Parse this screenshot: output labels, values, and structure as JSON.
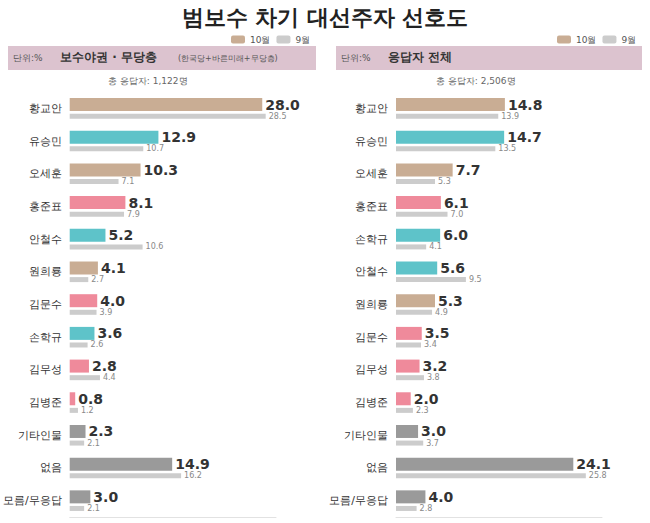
{
  "page_title": "범보수 차기 대선주자 선호도",
  "chart_data": [
    {
      "type": "bar",
      "orientation": "horizontal",
      "data_labels": true,
      "tick_labels": "y",
      "grid": false,
      "legend": "top-right",
      "unit": "단위:%",
      "title": "보수야권 · 무당층",
      "subtitle": "(한국당+바른미래+무당층)",
      "note": "총 응답자: 1,122명",
      "categories": [
        "황교안",
        "유승민",
        "오세훈",
        "홍준표",
        "안철수",
        "원희룡",
        "김문수",
        "손학규",
        "김무성",
        "김병준",
        "기타인물",
        "없음",
        "모름/무응답"
      ],
      "xlim": [
        0,
        30
      ],
      "series": [
        {
          "name": "10월",
          "colors": [
            "#c9ad94",
            "#5ec3c9",
            "#c9ad94",
            "#ef8a9b",
            "#5ec3c9",
            "#c9ad94",
            "#ef8a9b",
            "#5ec3c9",
            "#ef8a9b",
            "#ef8a9b",
            "#9a9a9a",
            "#9a9a9a",
            "#9a9a9a"
          ],
          "values": [
            28.0,
            12.9,
            10.3,
            8.1,
            5.2,
            4.1,
            4.0,
            3.6,
            2.8,
            0.8,
            2.3,
            14.9,
            3.0
          ],
          "value_labels": [
            "28.0",
            "12.9",
            "10.3",
            "8.1",
            "5.2",
            "4.1",
            "4.0",
            "3.6",
            "2.8",
            "0.8",
            "2.3",
            "14.9",
            "3.0"
          ]
        },
        {
          "name": "9월",
          "color": "#cccccc",
          "values": [
            28.5,
            10.7,
            7.1,
            7.9,
            10.6,
            2.7,
            3.9,
            2.6,
            4.4,
            1.2,
            2.1,
            16.2,
            2.1
          ],
          "value_labels": [
            "28.5",
            "10.7",
            "7.1",
            "7.9",
            "10.6",
            "2.7",
            "3.9",
            "2.6",
            "4.4",
            "1.2",
            "2.1",
            "16.2",
            "2.1"
          ]
        }
      ]
    },
    {
      "type": "bar",
      "orientation": "horizontal",
      "data_labels": true,
      "tick_labels": "y",
      "grid": false,
      "legend": "top-right",
      "unit": "단위:%",
      "title": "응답자 전체",
      "note": "총 응답자: 2,506명",
      "categories": [
        "황교안",
        "유승민",
        "오세훈",
        "홍준표",
        "손학규",
        "안철수",
        "원희룡",
        "김문수",
        "김무성",
        "김병준",
        "기타인물",
        "없음",
        "모름/무응답"
      ],
      "xlim": [
        0,
        28
      ],
      "series": [
        {
          "name": "10월",
          "colors": [
            "#c9ad94",
            "#5ec3c9",
            "#c9ad94",
            "#ef8a9b",
            "#5ec3c9",
            "#5ec3c9",
            "#c9ad94",
            "#ef8a9b",
            "#ef8a9b",
            "#ef8a9b",
            "#9a9a9a",
            "#9a9a9a",
            "#9a9a9a"
          ],
          "values": [
            14.8,
            14.7,
            7.7,
            6.1,
            6.0,
            5.6,
            5.3,
            3.5,
            3.2,
            2.0,
            3.0,
            24.1,
            4.0
          ],
          "value_labels": [
            "14.8",
            "14.7",
            "7.7",
            "6.1",
            "6.0",
            "5.6",
            "5.3",
            "3.5",
            "3.2",
            "2.0",
            "3.0",
            "24.1",
            "4.0"
          ]
        },
        {
          "name": "9월",
          "color": "#cccccc",
          "values": [
            13.9,
            13.5,
            5.3,
            7.0,
            4.1,
            9.5,
            4.9,
            3.4,
            3.8,
            2.3,
            3.7,
            25.8,
            2.8
          ],
          "value_labels": [
            "13.9",
            "13.5",
            "5.3",
            "7.0",
            "4.1",
            "9.5",
            "4.9",
            "3.4",
            "3.8",
            "2.3",
            "3.7",
            "25.8",
            "2.8"
          ]
        }
      ]
    }
  ]
}
